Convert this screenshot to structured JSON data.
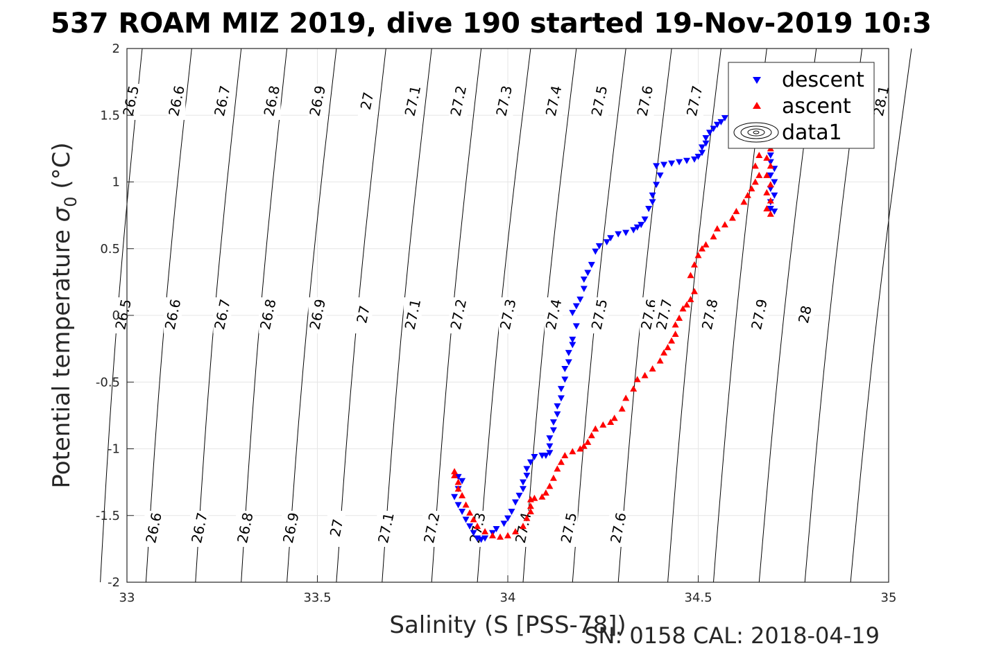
{
  "title": "537 ROAM MIZ 2019, dive 190 started 19-Nov-2019 10:3",
  "footer_text": "SN: 0158  CAL: 2018-04-19",
  "colors": {
    "descent": "#0000ff",
    "ascent": "#ff0000",
    "contour": "#000000",
    "grid": "#e6e6e6"
  },
  "legend": {
    "descent_label": "descent",
    "ascent_label": "ascent",
    "data1_label": "data1"
  },
  "chart_data": {
    "type": "scatter",
    "xlabel": "Salinity (S [PSS-78])",
    "ylabel_main": "Potential temperature ",
    "ylabel_sigma": "σ",
    "ylabel_sub": "0",
    "ylabel_unit": " (°C)",
    "xlim": [
      33,
      35
    ],
    "ylim": [
      -2,
      2
    ],
    "xticks": [
      {
        "v": 33,
        "label": "33"
      },
      {
        "v": 33.5,
        "label": "33.5"
      },
      {
        "v": 34,
        "label": "34"
      },
      {
        "v": 34.5,
        "label": "34.5"
      },
      {
        "v": 35,
        "label": "35"
      }
    ],
    "yticks": [
      {
        "v": -2,
        "label": "-2"
      },
      {
        "v": -1.5,
        "label": "-1.5"
      },
      {
        "v": -1,
        "label": "-1"
      },
      {
        "v": -0.5,
        "label": "-0.5"
      },
      {
        "v": 0,
        "label": "0"
      },
      {
        "v": 0.5,
        "label": "0.5"
      },
      {
        "v": 1,
        "label": "1"
      },
      {
        "v": 1.5,
        "label": "1.5"
      },
      {
        "v": 2,
        "label": "2"
      }
    ],
    "grid": true,
    "legend_position": "top-right",
    "density_contours": {
      "levels": [
        {
          "sigma": 26.5,
          "label": "26.5",
          "s_bottom": 32.93,
          "s_top": 33.04,
          "label_s": [
            33.01,
            32.99
          ]
        },
        {
          "sigma": 26.6,
          "label": "26.6",
          "s_bottom": 33.05,
          "s_top": 33.17,
          "label_s": [
            33.13,
            33.12,
            33.07
          ]
        },
        {
          "sigma": 26.7,
          "label": "26.7",
          "s_bottom": 33.18,
          "s_top": 33.3,
          "label_s": [
            33.25,
            33.25,
            33.19
          ]
        },
        {
          "sigma": 26.8,
          "label": "26.8",
          "s_bottom": 33.3,
          "s_top": 33.42,
          "label_s": [
            33.38,
            33.37,
            33.31
          ]
        },
        {
          "sigma": 26.9,
          "label": "26.9",
          "s_bottom": 33.42,
          "s_top": 33.55,
          "label_s": [
            33.5,
            33.5,
            33.43
          ]
        },
        {
          "sigma": 27.0,
          "label": "27",
          "s_bottom": 33.55,
          "s_top": 33.68,
          "label_s": [
            33.63,
            33.62,
            33.55
          ]
        },
        {
          "sigma": 27.1,
          "label": "27.1",
          "s_bottom": 33.67,
          "s_top": 33.8,
          "label_s": [
            33.75,
            33.75,
            33.68
          ]
        },
        {
          "sigma": 27.2,
          "label": "27.2",
          "s_bottom": 33.8,
          "s_top": 33.93,
          "label_s": [
            33.87,
            33.87,
            33.8
          ]
        },
        {
          "sigma": 27.3,
          "label": "27.3",
          "s_bottom": 33.92,
          "s_top": 34.06,
          "label_s": [
            33.99,
            34.0,
            33.92
          ]
        },
        {
          "sigma": 27.4,
          "label": "27.4",
          "s_bottom": 34.04,
          "s_top": 34.18,
          "label_s": [
            34.12,
            34.12,
            34.04
          ]
        },
        {
          "sigma": 27.5,
          "label": "27.5",
          "s_bottom": 34.17,
          "s_top": 34.31,
          "label_s": [
            34.24,
            34.24,
            34.16
          ]
        },
        {
          "sigma": 27.6,
          "label": "27.6",
          "s_bottom": 34.29,
          "s_top": 34.43,
          "label_s": [
            34.36,
            34.37,
            34.29
          ]
        },
        {
          "sigma": 27.7,
          "label": "27.7",
          "s_bottom": 34.42,
          "s_top": 34.56,
          "label_s": [
            34.49,
            34.41
          ]
        },
        {
          "sigma": 27.8,
          "label": "27.8",
          "s_bottom": 34.54,
          "s_top": 34.68,
          "label_s": [
            34.61,
            34.53
          ]
        },
        {
          "sigma": 27.9,
          "label": "27.9",
          "s_bottom": 34.66,
          "s_top": 34.81,
          "label_s": [
            34.73,
            34.66
          ]
        },
        {
          "sigma": 28.0,
          "label": "28",
          "s_bottom": 34.78,
          "s_top": 34.93,
          "label_s": [
            34.86,
            34.78
          ]
        },
        {
          "sigma": 28.1,
          "label": "28.1",
          "s_bottom": 34.9,
          "s_top": 35.06,
          "label_s": [
            34.98
          ]
        }
      ]
    },
    "series": [
      {
        "name": "descent",
        "marker": "triangle-down",
        "points": [
          [
            34.59,
            1.49
          ],
          [
            34.57,
            1.48
          ],
          [
            34.56,
            1.45
          ],
          [
            34.55,
            1.43
          ],
          [
            34.54,
            1.4
          ],
          [
            34.53,
            1.37
          ],
          [
            34.52,
            1.33
          ],
          [
            34.52,
            1.29
          ],
          [
            34.51,
            1.26
          ],
          [
            34.51,
            1.22
          ],
          [
            34.5,
            1.19
          ],
          [
            34.49,
            1.17
          ],
          [
            34.47,
            1.16
          ],
          [
            34.45,
            1.15
          ],
          [
            34.43,
            1.14
          ],
          [
            34.41,
            1.13
          ],
          [
            34.39,
            1.12
          ],
          [
            34.4,
            1.05
          ],
          [
            34.39,
            0.98
          ],
          [
            34.38,
            0.9
          ],
          [
            34.38,
            0.85
          ],
          [
            34.37,
            0.8
          ],
          [
            34.36,
            0.72
          ],
          [
            34.35,
            0.68
          ],
          [
            34.34,
            0.66
          ],
          [
            34.33,
            0.64
          ],
          [
            34.31,
            0.62
          ],
          [
            34.29,
            0.61
          ],
          [
            34.27,
            0.58
          ],
          [
            34.26,
            0.55
          ],
          [
            34.24,
            0.52
          ],
          [
            34.23,
            0.48
          ],
          [
            34.22,
            0.38
          ],
          [
            34.21,
            0.32
          ],
          [
            34.2,
            0.27
          ],
          [
            34.2,
            0.2
          ],
          [
            34.19,
            0.12
          ],
          [
            34.18,
            0.07
          ],
          [
            34.17,
            0.02
          ],
          [
            34.18,
            -0.08
          ],
          [
            34.17,
            -0.18
          ],
          [
            34.17,
            -0.22
          ],
          [
            34.16,
            -0.28
          ],
          [
            34.16,
            -0.35
          ],
          [
            34.15,
            -0.4
          ],
          [
            34.15,
            -0.48
          ],
          [
            34.14,
            -0.55
          ],
          [
            34.14,
            -0.62
          ],
          [
            34.13,
            -0.68
          ],
          [
            34.13,
            -0.74
          ],
          [
            34.12,
            -0.8
          ],
          [
            34.12,
            -0.86
          ],
          [
            34.11,
            -0.92
          ],
          [
            34.11,
            -0.98
          ],
          [
            34.11,
            -1.03
          ],
          [
            34.1,
            -1.05
          ],
          [
            34.09,
            -1.05
          ],
          [
            34.07,
            -1.06
          ],
          [
            34.06,
            -1.1
          ],
          [
            34.05,
            -1.15
          ],
          [
            34.05,
            -1.2
          ],
          [
            34.04,
            -1.25
          ],
          [
            34.04,
            -1.3
          ],
          [
            34.03,
            -1.35
          ],
          [
            34.02,
            -1.4
          ],
          [
            34.01,
            -1.47
          ],
          [
            34.0,
            -1.52
          ],
          [
            33.99,
            -1.56
          ],
          [
            33.97,
            -1.6
          ],
          [
            33.96,
            -1.63
          ],
          [
            33.94,
            -1.67
          ],
          [
            33.93,
            -1.68
          ],
          [
            33.92,
            -1.67
          ],
          [
            33.91,
            -1.63
          ],
          [
            33.9,
            -1.58
          ],
          [
            33.89,
            -1.53
          ],
          [
            33.88,
            -1.47
          ],
          [
            33.87,
            -1.42
          ],
          [
            33.86,
            -1.36
          ],
          [
            33.87,
            -1.3
          ],
          [
            33.88,
            -1.24
          ],
          [
            33.87,
            -1.21
          ],
          [
            34.69,
            1.2
          ],
          [
            34.69,
            1.15
          ],
          [
            34.7,
            1.1
          ],
          [
            34.69,
            1.05
          ],
          [
            34.7,
            1.0
          ],
          [
            34.69,
            0.95
          ],
          [
            34.7,
            0.9
          ],
          [
            34.69,
            0.85
          ],
          [
            34.69,
            0.8
          ],
          [
            34.7,
            0.78
          ]
        ]
      },
      {
        "name": "ascent",
        "marker": "triangle-up",
        "points": [
          [
            33.86,
            -1.17
          ],
          [
            33.86,
            -1.2
          ],
          [
            33.87,
            -1.25
          ],
          [
            33.87,
            -1.3
          ],
          [
            33.88,
            -1.35
          ],
          [
            33.89,
            -1.42
          ],
          [
            33.9,
            -1.48
          ],
          [
            33.91,
            -1.53
          ],
          [
            33.92,
            -1.58
          ],
          [
            33.94,
            -1.62
          ],
          [
            33.96,
            -1.65
          ],
          [
            33.98,
            -1.66
          ],
          [
            34.0,
            -1.65
          ],
          [
            34.02,
            -1.62
          ],
          [
            34.04,
            -1.58
          ],
          [
            34.05,
            -1.52
          ],
          [
            34.06,
            -1.47
          ],
          [
            34.06,
            -1.43
          ],
          [
            34.06,
            -1.38
          ],
          [
            34.07,
            -1.37
          ],
          [
            34.09,
            -1.36
          ],
          [
            34.1,
            -1.33
          ],
          [
            34.11,
            -1.28
          ],
          [
            34.12,
            -1.22
          ],
          [
            34.13,
            -1.15
          ],
          [
            34.14,
            -1.1
          ],
          [
            34.15,
            -1.05
          ],
          [
            34.17,
            -1.02
          ],
          [
            34.19,
            -1.0
          ],
          [
            34.2,
            -0.98
          ],
          [
            34.21,
            -0.95
          ],
          [
            34.22,
            -0.9
          ],
          [
            34.23,
            -0.85
          ],
          [
            34.25,
            -0.82
          ],
          [
            34.27,
            -0.8
          ],
          [
            34.28,
            -0.77
          ],
          [
            34.3,
            -0.7
          ],
          [
            34.31,
            -0.62
          ],
          [
            34.33,
            -0.55
          ],
          [
            34.34,
            -0.48
          ],
          [
            34.36,
            -0.45
          ],
          [
            34.38,
            -0.4
          ],
          [
            34.4,
            -0.34
          ],
          [
            34.41,
            -0.28
          ],
          [
            34.42,
            -0.24
          ],
          [
            34.43,
            -0.19
          ],
          [
            34.44,
            -0.14
          ],
          [
            34.44,
            -0.07
          ],
          [
            34.45,
            -0.02
          ],
          [
            34.46,
            0.05
          ],
          [
            34.47,
            0.08
          ],
          [
            34.48,
            0.12
          ],
          [
            34.49,
            0.18
          ],
          [
            34.48,
            0.3
          ],
          [
            34.49,
            0.38
          ],
          [
            34.5,
            0.45
          ],
          [
            34.51,
            0.5
          ],
          [
            34.52,
            0.53
          ],
          [
            34.54,
            0.59
          ],
          [
            34.55,
            0.65
          ],
          [
            34.57,
            0.68
          ],
          [
            34.59,
            0.73
          ],
          [
            34.6,
            0.78
          ],
          [
            34.62,
            0.85
          ],
          [
            34.63,
            0.9
          ],
          [
            34.64,
            0.95
          ],
          [
            34.65,
            1.0
          ],
          [
            34.66,
            1.05
          ],
          [
            34.65,
            1.12
          ],
          [
            34.66,
            1.2
          ],
          [
            34.67,
            1.3
          ],
          [
            34.68,
            1.4
          ],
          [
            34.68,
            1.48
          ],
          [
            34.69,
            1.25
          ],
          [
            34.68,
            1.18
          ],
          [
            34.69,
            1.12
          ],
          [
            34.68,
            1.05
          ],
          [
            34.69,
            0.98
          ],
          [
            34.68,
            0.92
          ],
          [
            34.69,
            0.86
          ],
          [
            34.68,
            0.8
          ],
          [
            34.69,
            0.76
          ]
        ]
      }
    ]
  }
}
